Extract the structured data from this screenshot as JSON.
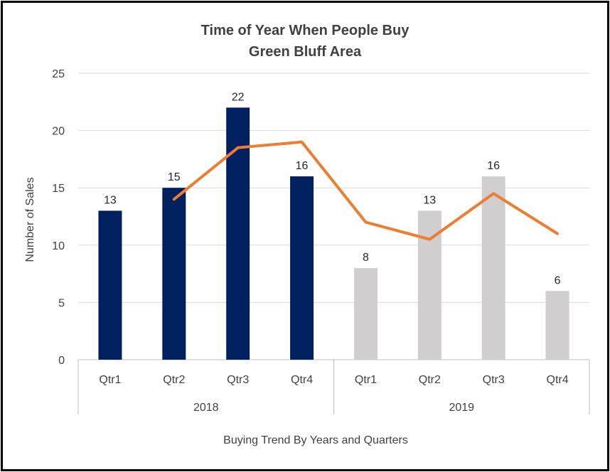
{
  "chart_data": {
    "type": "bar",
    "title": "Time of Year When People Buy",
    "subtitle": "Green Bluff Area",
    "xlabel": "Buying Trend By Years and Quarters",
    "ylabel": "Number of Sales",
    "ylim": [
      0,
      25
    ],
    "yticks": [
      0,
      5,
      10,
      15,
      20,
      25
    ],
    "grid": true,
    "legend": "none",
    "categories": [
      "Qtr1",
      "Qtr2",
      "Qtr3",
      "Qtr4",
      "Qtr1",
      "Qtr2",
      "Qtr3",
      "Qtr4"
    ],
    "groups": [
      {
        "label": "2018",
        "start": 0,
        "end": 3
      },
      {
        "label": "2019",
        "start": 4,
        "end": 7
      }
    ],
    "bar_values": [
      13,
      15,
      22,
      16,
      8,
      13,
      16,
      6
    ],
    "bar_colors": [
      "#002060",
      "#002060",
      "#002060",
      "#002060",
      "#D0CECE",
      "#D0CECE",
      "#D0CECE",
      "#D0CECE"
    ],
    "trend_line": {
      "type": "line",
      "color": "#ED7D31",
      "x_index": [
        1,
        2,
        3,
        4,
        5,
        6,
        7
      ],
      "values": [
        14,
        18.5,
        19,
        12,
        10.5,
        14.5,
        11
      ]
    }
  }
}
